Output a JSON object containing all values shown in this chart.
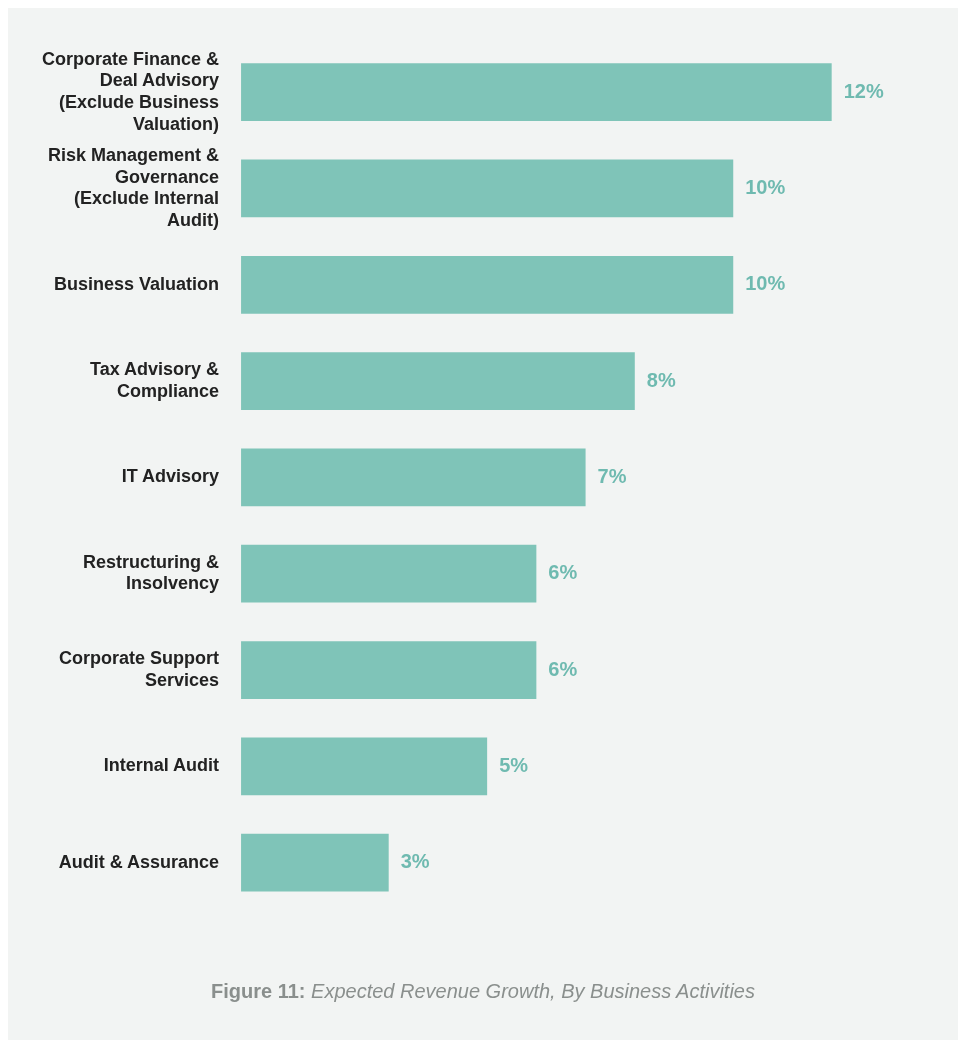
{
  "chart_data": {
    "type": "bar",
    "orientation": "horizontal",
    "categories": [
      "Corporate Finance & Deal Advisory (Exclude Business Valuation)",
      "Risk Management & Governance (Exclude Internal Audit)",
      "Business Valuation",
      "Tax Advisory & Compliance",
      "IT Advisory",
      "Restructuring & Insolvency",
      "Corporate Support Services",
      "Internal Audit",
      "Audit & Assurance"
    ],
    "values": [
      12,
      10,
      10,
      8,
      7,
      6,
      6,
      5,
      3
    ],
    "value_labels": [
      "12%",
      "10%",
      "10%",
      "8%",
      "7%",
      "6%",
      "6%",
      "5%",
      "3%"
    ],
    "color": "#7fc4b8",
    "tick_labels": "y",
    "annotations": [
      "Figure 11: Expected Revenue Growth, By Business Activities"
    ]
  }
}
